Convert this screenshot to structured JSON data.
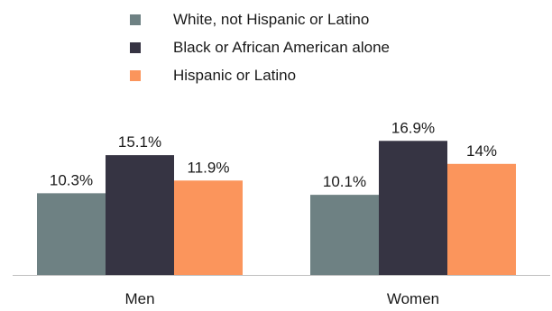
{
  "chart_data": {
    "type": "bar",
    "title": "",
    "xlabel": "",
    "ylabel": "",
    "categories": [
      "Men",
      "Women"
    ],
    "series": [
      {
        "name": "White, not Hispanic or Latino",
        "color": "#6e8183",
        "values": [
          10.3,
          10.1
        ],
        "labels": [
          "10.3%",
          "10.1%"
        ]
      },
      {
        "name": "Black or African American alone",
        "color": "#363443",
        "values": [
          15.1,
          16.9
        ],
        "labels": [
          "15.1%",
          "16.9%"
        ]
      },
      {
        "name": "Hispanic or Latino",
        "color": "#fb955c",
        "values": [
          11.9,
          14.0
        ],
        "labels": [
          "11.9%",
          "14%"
        ]
      }
    ],
    "ylim": [
      0,
      20
    ],
    "grid": false,
    "legend_position": "top"
  }
}
